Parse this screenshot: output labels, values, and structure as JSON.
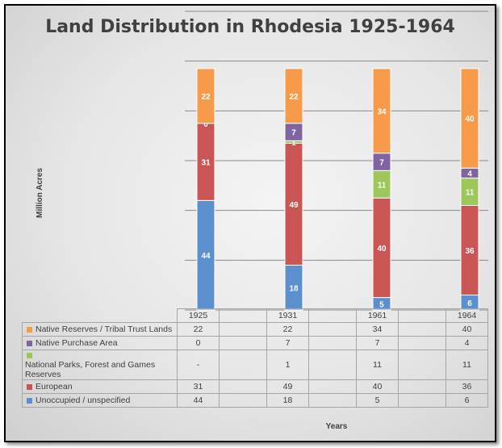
{
  "chart_data": {
    "type": "stacked-bar",
    "title": "Land Distribution in Rhodesia 1925-1964",
    "xlabel": "Years",
    "ylabel": "Million Acres",
    "categories": [
      "1925",
      "1931",
      "1961",
      "1964"
    ],
    "ylim": [
      0,
      120
    ],
    "grid": true,
    "legend": "data-table",
    "series": [
      {
        "name": "Unoccupied / unspecified",
        "color": "#5b8fcd",
        "values": [
          44,
          18,
          5,
          6
        ],
        "display": [
          "44",
          "18",
          "5",
          "6"
        ]
      },
      {
        "name": "European",
        "color": "#c95654",
        "values": [
          31,
          49,
          40,
          36
        ],
        "display": [
          "31",
          "49",
          "40",
          "36"
        ]
      },
      {
        "name": "National Parks, Forest and Games Reserves",
        "color": "#9dc75a",
        "values": [
          0,
          1,
          11,
          11
        ],
        "display": [
          "-",
          "1",
          "11",
          "11"
        ]
      },
      {
        "name": "Native Purchase Area",
        "color": "#8064a2",
        "values": [
          0,
          7,
          7,
          4
        ],
        "display": [
          "0",
          "7",
          "7",
          "4"
        ]
      },
      {
        "name": "Native Reserves / Tribal Trust Lands",
        "color": "#f79a4a",
        "values": [
          22,
          22,
          34,
          40
        ],
        "display": [
          "22",
          "22",
          "34",
          "40"
        ]
      }
    ]
  }
}
